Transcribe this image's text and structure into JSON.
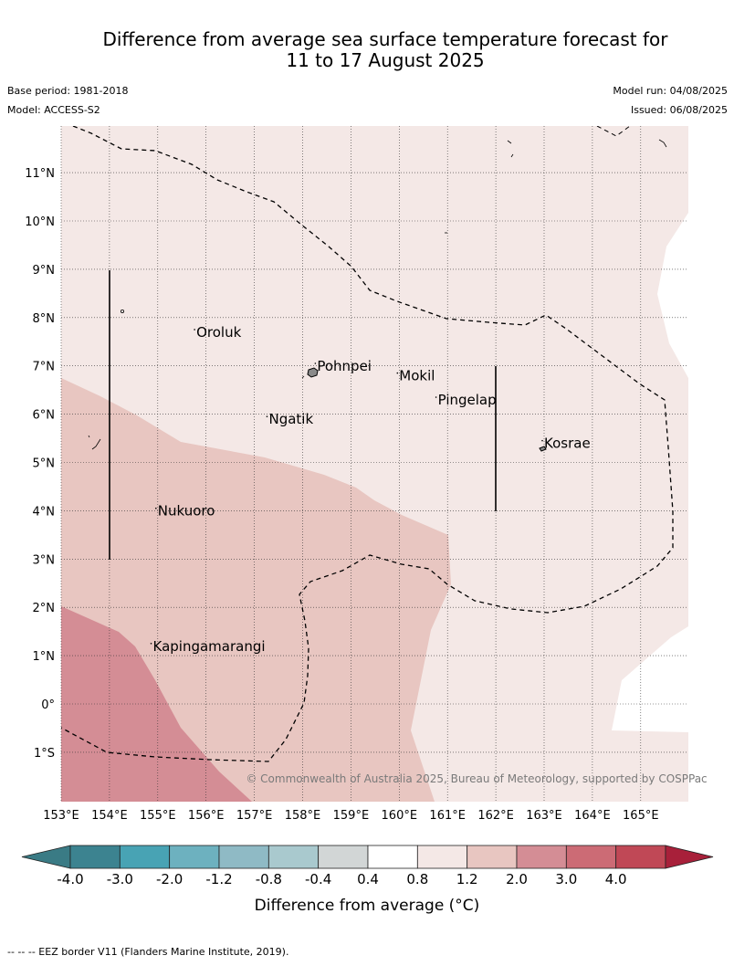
{
  "title_line1": "Difference from average sea surface temperature forecast for",
  "title_line2": "11 to 17 August 2025",
  "base_period": "Base period: 1981-2018",
  "model": "Model: ACCESS-S2",
  "model_run": "Model run: 04/08/2025",
  "issued": "Issued: 06/08/2025",
  "copyright": "© Commonwealth of Australia 2025, Bureau of Meteorology, supported by COSPPac",
  "footer_note": "--  --  -- EEZ border V11 (Flanders Marine Institute, 2019).",
  "lat_labels": [
    "11°N",
    "10°N",
    "9°N",
    "8°N",
    "7°N",
    "6°N",
    "5°N",
    "4°N",
    "3°N",
    "2°N",
    "1°N",
    "0°",
    "1°S"
  ],
  "lon_labels": [
    "153°E",
    "154°E",
    "155°E",
    "156°E",
    "157°E",
    "158°E",
    "159°E",
    "160°E",
    "161°E",
    "162°E",
    "163°E",
    "164°E",
    "165°E"
  ],
  "places": [
    {
      "name": "Oroluk",
      "lon": 155.8,
      "lat": 7.6
    },
    {
      "name": "Pohnpei",
      "lon": 158.3,
      "lat": 6.9
    },
    {
      "name": "Mokil",
      "lon": 160.0,
      "lat": 6.7
    },
    {
      "name": "Pingelap",
      "lon": 160.8,
      "lat": 6.2
    },
    {
      "name": "Ngatik",
      "lon": 157.3,
      "lat": 5.8
    },
    {
      "name": "Kosrae",
      "lon": 163.0,
      "lat": 5.3
    },
    {
      "name": "Nukuoro",
      "lon": 155.0,
      "lat": 3.9
    },
    {
      "name": "Kapingamarangi",
      "lon": 154.9,
      "lat": 1.1
    }
  ],
  "colorbar": {
    "ticks": [
      "-4.0",
      "-3.0",
      "-2.0",
      "-1.2",
      "-0.8",
      "-0.4",
      "0.4",
      "0.8",
      "1.2",
      "2.0",
      "3.0",
      "4.0"
    ],
    "colors": [
      "#3c8390",
      "#48a3b4",
      "#6db1bf",
      "#8fbac5",
      "#a9c9ce",
      "#d2d6d6",
      "#ffffff",
      "#f4e8e6",
      "#e8c6c1",
      "#d48d95",
      "#cc6b75",
      "#c04856"
    ],
    "under_color": "#3a7b85",
    "over_color": "#a8203a",
    "label": "Difference from average (°C)"
  }
}
